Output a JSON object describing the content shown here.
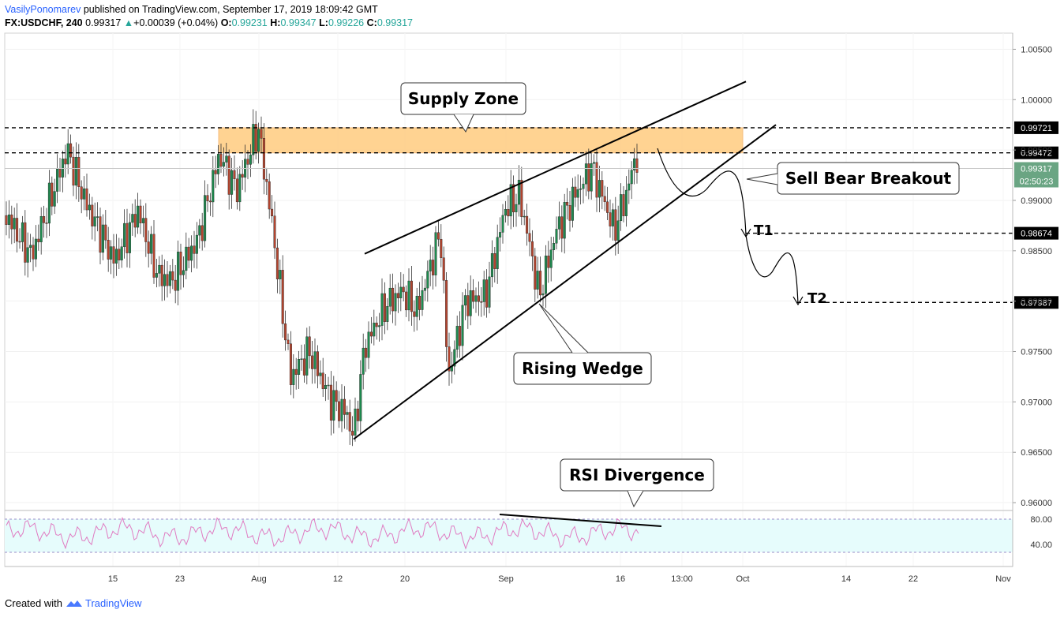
{
  "header": {
    "author": "VasilyPonomarev",
    "published_text": "published on TradingView.com, September 17, 2019 18:09:42 GMT",
    "symbol": "FX:USDCHF, 240",
    "last": "0.99317",
    "change": "+0.00039 (+0.04%)",
    "o_label": "O:",
    "o_val": "0.99231",
    "h_label": "H:",
    "h_val": "0.99347",
    "l_label": "L:",
    "l_val": "0.99226",
    "c_label": "C:",
    "c_val": "0.99317"
  },
  "footer": {
    "created_with": "Created with",
    "brand": "TradingView"
  },
  "chart_data": {
    "type": "candlestick",
    "symbol": "FX:USDCHF",
    "interval": "240",
    "y_axis": {
      "ticks": [
        "1.00500",
        "1.00000",
        "0.99500",
        "0.99000",
        "0.98500",
        "0.98000",
        "0.97500",
        "0.97000",
        "0.96500",
        "0.96000"
      ],
      "ylim": [
        0.9593,
        1.0066
      ]
    },
    "x_axis": {
      "ticks": [
        "15",
        "23",
        "Aug",
        "12",
        "20",
        "Sep",
        "16",
        "13:00",
        "Oct",
        "14",
        "22",
        "Nov"
      ]
    },
    "price_levels": [
      {
        "value": 0.99721,
        "label": "0.99721",
        "style": "dashed",
        "color": "#000000"
      },
      {
        "value": 0.99472,
        "label": "0.99472",
        "style": "dashed",
        "color": "#000000"
      },
      {
        "value": 0.98674,
        "label": "0.98674",
        "style": "dashed",
        "color": "#000000"
      },
      {
        "value": 0.97987,
        "label": "0.97987",
        "style": "dashed",
        "color": "#000000"
      }
    ],
    "current_price": {
      "value": 0.99317,
      "label": "0.99317",
      "countdown": "02:50:23",
      "color": "#6aa583"
    },
    "supply_zone": {
      "top": 0.99721,
      "bottom": 0.99472,
      "color": "#ffcc80"
    },
    "rising_wedge": {
      "upper": [
        [
          0.9847
        ],
        [
          1.0018
        ]
      ],
      "lower": [
        [
          0.9663
        ],
        [
          0.9975
        ]
      ]
    },
    "annotations": [
      {
        "id": "supply",
        "text": "Supply Zone"
      },
      {
        "id": "sell",
        "text": "Sell Bear Breakout"
      },
      {
        "id": "wedge",
        "text": "Rising Wedge"
      },
      {
        "id": "rsi",
        "text": "RSI Divergence"
      },
      {
        "id": "t1",
        "text": "T1"
      },
      {
        "id": "t2",
        "text": "T2"
      }
    ],
    "candle_colors": {
      "up": "#1e8b4f",
      "down": "#b5452f"
    },
    "rsi": {
      "ticks": [
        "80.00",
        "40.00"
      ],
      "upper_band": 80,
      "lower_band": 20,
      "line_color": "#e07cc2",
      "band_color": "#e6fcfc"
    }
  }
}
